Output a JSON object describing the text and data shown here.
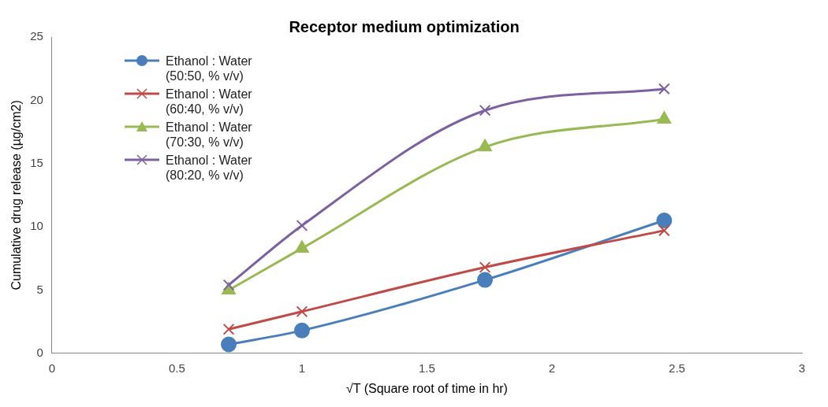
{
  "chart_data": {
    "type": "line",
    "title": "Receptor medium optimization",
    "xlabel": "√T (Square root of time in hr)",
    "ylabel": "Cumulative drug release (µg/cm2)",
    "x": [
      0.707,
      1,
      1.732,
      2.449
    ],
    "series": [
      {
        "name": "Ethanol : Water (50:50, % v/v)",
        "color": "#4a7ebb",
        "marker": "circle",
        "values": [
          0.7,
          1.8,
          5.8,
          10.5
        ]
      },
      {
        "name": "Ethanol : Water (60:40, % v/v)",
        "color": "#be4b48",
        "marker": "cross",
        "values": [
          1.9,
          3.3,
          6.8,
          9.7
        ]
      },
      {
        "name": "Ethanol : Water (70:30, % v/v)",
        "color": "#98b954",
        "marker": "triangle",
        "values": [
          5.0,
          8.3,
          16.3,
          18.5
        ]
      },
      {
        "name": "Ethanol : Water (80:20, % v/v)",
        "color": "#7d60a0",
        "marker": "cross",
        "values": [
          5.4,
          10.1,
          19.2,
          20.9
        ]
      }
    ],
    "xlim": [
      0,
      3
    ],
    "xticks": [
      0,
      0.5,
      1,
      1.5,
      2,
      2.5,
      3
    ],
    "ylim": [
      0,
      25
    ],
    "yticks": [
      0,
      5,
      10,
      15,
      20,
      25
    ],
    "grid": false,
    "legend": "top left"
  }
}
